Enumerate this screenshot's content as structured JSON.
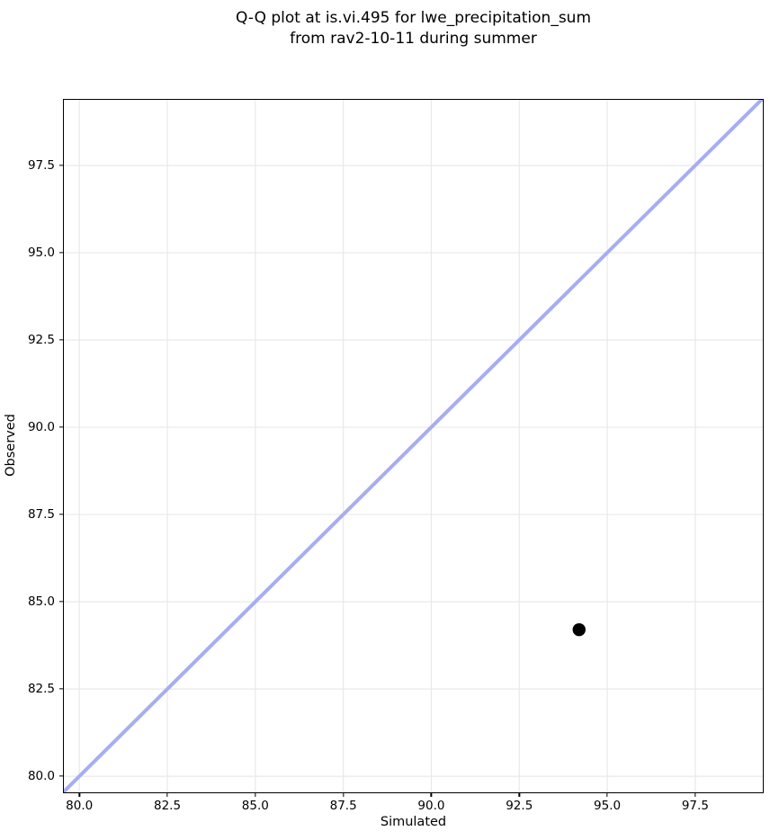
{
  "title": {
    "line1": "Q-Q plot at is.vi.495 for lwe_precipitation_sum",
    "line2": "from rav2-10-11 during summer"
  },
  "chart_data": {
    "type": "scatter",
    "title": "Q-Q plot at is.vi.495 for lwe_precipitation_sum\nfrom rav2-10-11 during summer",
    "xlabel": "Simulated",
    "ylabel": "Observed",
    "xlim": [
      79.56,
      99.42
    ],
    "ylim": [
      79.54,
      99.38
    ],
    "x_ticks": [
      80.0,
      82.5,
      85.0,
      87.5,
      90.0,
      92.5,
      95.0,
      97.5
    ],
    "y_ticks": [
      80.0,
      82.5,
      85.0,
      87.5,
      90.0,
      92.5,
      95.0,
      97.5
    ],
    "tick_format_decimals": 1,
    "grid": true,
    "legend": false,
    "points": [
      {
        "x": 94.2,
        "y": 84.2
      }
    ],
    "reference_line": {
      "kind": "identity",
      "from": 79.0,
      "to": 100.0,
      "color": "#a6adf2",
      "width": 4
    },
    "point_color": "#000000",
    "point_radius": 7.2,
    "grid_color": "#e9e9e9",
    "spine_color": "#000000",
    "background_color": "#ffffff"
  }
}
